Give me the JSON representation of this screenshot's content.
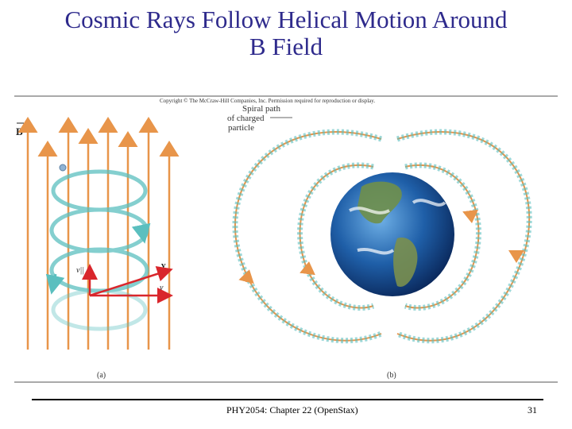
{
  "slide": {
    "title_line1": "Cosmic Rays Follow Helical Motion Around",
    "title_line2": "B Field",
    "footer": "PHY2054: Chapter 22 (OpenStax)",
    "page_number": "31"
  },
  "figure": {
    "copyright": "Copyright © The McCraw-Hill Companies, Inc. Permission required for reproduction or display.",
    "label_B": "B",
    "label_v_parallel": "v||",
    "label_v": "v",
    "label_v_perp": "v",
    "spiral_label_1": "Spiral path",
    "spiral_label_2": "of charged",
    "spiral_label_3": "particle",
    "caption_a": "(a)",
    "caption_b": "(b)",
    "colors": {
      "field_line": "#e8954a",
      "helix": "#5bbfbf",
      "vector": "#d9262c",
      "title": "#2e2a8c"
    }
  }
}
